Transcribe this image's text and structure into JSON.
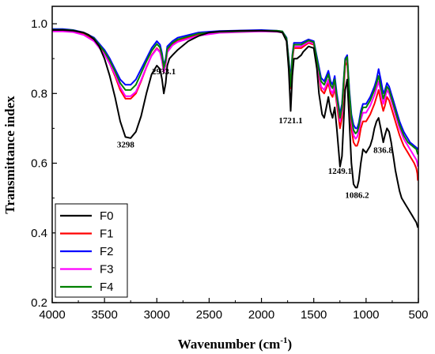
{
  "chart_data": {
    "type": "line",
    "xlabel": "Wavenumber (cm",
    "xlabel_sup": "-1",
    "xlabel_end": ")",
    "ylabel": "Transmittance index",
    "xlim": [
      4000,
      500
    ],
    "ylim": [
      0.2,
      1.05
    ],
    "x_ticks": [
      "4000",
      "3500",
      "3000",
      "2500",
      "2000",
      "1500",
      "1000",
      "500"
    ],
    "y_ticks": [
      "0.2",
      "0.4",
      "0.6",
      "0.8",
      "1.0"
    ],
    "grid": false,
    "legend_position": "bottom-left",
    "annotations": [
      {
        "text": "3298",
        "x": 3298,
        "y": 0.645
      },
      {
        "text": "2933.1",
        "x": 2933,
        "y": 0.855
      },
      {
        "text": "1721.1",
        "x": 1721,
        "y": 0.715
      },
      {
        "text": "1249.1",
        "x": 1249,
        "y": 0.57
      },
      {
        "text": "1086.2",
        "x": 1086,
        "y": 0.5
      },
      {
        "text": "836.8",
        "x": 836,
        "y": 0.63
      }
    ],
    "series": [
      {
        "name": "F0",
        "color": "#000000",
        "x": [
          4000,
          3900,
          3800,
          3700,
          3650,
          3600,
          3550,
          3500,
          3450,
          3400,
          3350,
          3300,
          3250,
          3200,
          3150,
          3100,
          3050,
          3000,
          2970,
          2950,
          2933,
          2915,
          2900,
          2880,
          2850,
          2800,
          2700,
          2600,
          2500,
          2400,
          2200,
          2000,
          1850,
          1800,
          1760,
          1740,
          1721,
          1705,
          1690,
          1660,
          1620,
          1600,
          1550,
          1500,
          1470,
          1450,
          1420,
          1400,
          1380,
          1360,
          1340,
          1320,
          1300,
          1280,
          1249,
          1230,
          1200,
          1180,
          1160,
          1140,
          1120,
          1100,
          1086,
          1070,
          1050,
          1030,
          1000,
          980,
          960,
          940,
          920,
          900,
          880,
          860,
          836,
          820,
          800,
          780,
          760,
          740,
          720,
          700,
          680,
          660,
          640,
          620,
          600,
          580,
          560,
          540,
          520,
          510,
          505
        ],
        "y": [
          0.982,
          0.982,
          0.98,
          0.975,
          0.968,
          0.955,
          0.935,
          0.9,
          0.85,
          0.79,
          0.72,
          0.675,
          0.672,
          0.69,
          0.735,
          0.8,
          0.855,
          0.88,
          0.87,
          0.84,
          0.8,
          0.83,
          0.88,
          0.9,
          0.91,
          0.925,
          0.95,
          0.965,
          0.975,
          0.978,
          0.98,
          0.98,
          0.978,
          0.975,
          0.95,
          0.87,
          0.75,
          0.85,
          0.9,
          0.9,
          0.91,
          0.92,
          0.935,
          0.93,
          0.87,
          0.8,
          0.74,
          0.73,
          0.76,
          0.79,
          0.75,
          0.73,
          0.76,
          0.7,
          0.59,
          0.62,
          0.81,
          0.84,
          0.72,
          0.6,
          0.54,
          0.53,
          0.53,
          0.55,
          0.6,
          0.64,
          0.63,
          0.64,
          0.65,
          0.67,
          0.7,
          0.72,
          0.73,
          0.7,
          0.66,
          0.68,
          0.7,
          0.69,
          0.66,
          0.62,
          0.58,
          0.55,
          0.52,
          0.5,
          0.49,
          0.48,
          0.47,
          0.46,
          0.45,
          0.44,
          0.43,
          0.42,
          0.415
        ]
      },
      {
        "name": "F1",
        "color": "#ff0000",
        "x": [
          4000,
          3900,
          3800,
          3700,
          3600,
          3500,
          3450,
          3400,
          3350,
          3300,
          3250,
          3200,
          3150,
          3100,
          3050,
          3000,
          2970,
          2950,
          2933,
          2915,
          2900,
          2850,
          2800,
          2600,
          2400,
          2000,
          1850,
          1800,
          1760,
          1740,
          1721,
          1705,
          1690,
          1620,
          1550,
          1500,
          1460,
          1430,
          1400,
          1380,
          1360,
          1340,
          1320,
          1300,
          1280,
          1249,
          1230,
          1200,
          1180,
          1160,
          1140,
          1120,
          1100,
          1086,
          1070,
          1050,
          1030,
          1000,
          960,
          920,
          900,
          880,
          860,
          836,
          820,
          800,
          780,
          760,
          740,
          720,
          700,
          680,
          660,
          640,
          620,
          600,
          580,
          560,
          540,
          520,
          510,
          505
        ],
        "y": [
          0.982,
          0.982,
          0.98,
          0.972,
          0.955,
          0.915,
          0.885,
          0.85,
          0.81,
          0.785,
          0.785,
          0.8,
          0.835,
          0.875,
          0.91,
          0.93,
          0.92,
          0.895,
          0.86,
          0.885,
          0.92,
          0.94,
          0.95,
          0.97,
          0.977,
          0.98,
          0.978,
          0.975,
          0.955,
          0.88,
          0.815,
          0.895,
          0.93,
          0.93,
          0.945,
          0.94,
          0.87,
          0.81,
          0.8,
          0.815,
          0.83,
          0.8,
          0.79,
          0.815,
          0.77,
          0.7,
          0.73,
          0.88,
          0.89,
          0.78,
          0.7,
          0.66,
          0.65,
          0.65,
          0.665,
          0.7,
          0.72,
          0.72,
          0.74,
          0.77,
          0.79,
          0.81,
          0.78,
          0.75,
          0.765,
          0.79,
          0.78,
          0.76,
          0.74,
          0.72,
          0.7,
          0.68,
          0.665,
          0.65,
          0.64,
          0.63,
          0.62,
          0.61,
          0.6,
          0.585,
          0.57,
          0.55
        ]
      },
      {
        "name": "F2",
        "color": "#0000ff",
        "x": [
          4000,
          3900,
          3800,
          3700,
          3600,
          3500,
          3450,
          3400,
          3350,
          3300,
          3250,
          3200,
          3150,
          3100,
          3050,
          3000,
          2970,
          2950,
          2933,
          2915,
          2900,
          2850,
          2800,
          2600,
          2400,
          2000,
          1850,
          1800,
          1760,
          1740,
          1721,
          1705,
          1690,
          1620,
          1550,
          1500,
          1460,
          1430,
          1400,
          1380,
          1360,
          1340,
          1320,
          1300,
          1280,
          1249,
          1230,
          1200,
          1180,
          1160,
          1140,
          1120,
          1100,
          1086,
          1070,
          1050,
          1030,
          1000,
          960,
          920,
          900,
          880,
          860,
          836,
          820,
          800,
          780,
          760,
          740,
          720,
          700,
          680,
          660,
          640,
          620,
          600,
          580,
          560,
          540,
          520,
          510,
          505
        ],
        "y": [
          0.985,
          0.985,
          0.982,
          0.975,
          0.96,
          0.925,
          0.9,
          0.87,
          0.84,
          0.825,
          0.825,
          0.84,
          0.87,
          0.9,
          0.93,
          0.95,
          0.94,
          0.915,
          0.88,
          0.9,
          0.935,
          0.95,
          0.96,
          0.975,
          0.979,
          0.982,
          0.98,
          0.978,
          0.96,
          0.9,
          0.84,
          0.91,
          0.945,
          0.945,
          0.955,
          0.95,
          0.89,
          0.845,
          0.835,
          0.85,
          0.865,
          0.835,
          0.825,
          0.85,
          0.8,
          0.74,
          0.77,
          0.9,
          0.91,
          0.81,
          0.74,
          0.71,
          0.7,
          0.7,
          0.715,
          0.75,
          0.77,
          0.77,
          0.79,
          0.82,
          0.84,
          0.87,
          0.84,
          0.8,
          0.81,
          0.83,
          0.82,
          0.8,
          0.78,
          0.76,
          0.74,
          0.72,
          0.705,
          0.69,
          0.68,
          0.67,
          0.66,
          0.655,
          0.65,
          0.645,
          0.64,
          0.645
        ]
      },
      {
        "name": "F3",
        "color": "#ff00ff",
        "x": [
          4000,
          3900,
          3800,
          3700,
          3600,
          3500,
          3450,
          3400,
          3350,
          3300,
          3250,
          3200,
          3150,
          3100,
          3050,
          3000,
          2970,
          2950,
          2933,
          2915,
          2900,
          2850,
          2800,
          2600,
          2400,
          2000,
          1850,
          1800,
          1760,
          1740,
          1721,
          1705,
          1690,
          1620,
          1550,
          1500,
          1460,
          1430,
          1400,
          1380,
          1360,
          1340,
          1320,
          1300,
          1280,
          1249,
          1230,
          1200,
          1180,
          1160,
          1140,
          1120,
          1100,
          1086,
          1070,
          1050,
          1030,
          1000,
          960,
          920,
          900,
          880,
          860,
          836,
          820,
          800,
          780,
          760,
          740,
          720,
          700,
          680,
          660,
          640,
          620,
          600,
          580,
          560,
          540,
          520,
          510,
          505
        ],
        "y": [
          0.978,
          0.978,
          0.976,
          0.968,
          0.95,
          0.912,
          0.885,
          0.855,
          0.818,
          0.792,
          0.792,
          0.805,
          0.838,
          0.876,
          0.908,
          0.928,
          0.918,
          0.893,
          0.86,
          0.885,
          0.918,
          0.938,
          0.948,
          0.966,
          0.974,
          0.978,
          0.977,
          0.975,
          0.955,
          0.888,
          0.83,
          0.9,
          0.935,
          0.935,
          0.948,
          0.943,
          0.875,
          0.82,
          0.81,
          0.825,
          0.84,
          0.81,
          0.8,
          0.825,
          0.78,
          0.72,
          0.75,
          0.89,
          0.9,
          0.795,
          0.72,
          0.68,
          0.67,
          0.675,
          0.69,
          0.725,
          0.745,
          0.745,
          0.765,
          0.795,
          0.815,
          0.835,
          0.805,
          0.77,
          0.785,
          0.81,
          0.8,
          0.78,
          0.76,
          0.74,
          0.72,
          0.7,
          0.685,
          0.67,
          0.66,
          0.65,
          0.64,
          0.63,
          0.62,
          0.61,
          0.6,
          0.59
        ]
      },
      {
        "name": "F4",
        "color": "#008000",
        "x": [
          4000,
          3900,
          3800,
          3700,
          3600,
          3500,
          3450,
          3400,
          3350,
          3300,
          3250,
          3200,
          3150,
          3100,
          3050,
          3000,
          2970,
          2950,
          2933,
          2915,
          2900,
          2850,
          2800,
          2600,
          2400,
          2000,
          1850,
          1800,
          1760,
          1740,
          1721,
          1705,
          1690,
          1620,
          1550,
          1500,
          1460,
          1430,
          1400,
          1380,
          1360,
          1340,
          1320,
          1300,
          1280,
          1249,
          1230,
          1200,
          1180,
          1160,
          1140,
          1120,
          1100,
          1086,
          1070,
          1050,
          1030,
          1000,
          960,
          920,
          900,
          880,
          860,
          836,
          820,
          800,
          780,
          760,
          740,
          720,
          700,
          680,
          660,
          640,
          620,
          600,
          580,
          560,
          540,
          520,
          510,
          505
        ],
        "y": [
          0.983,
          0.983,
          0.981,
          0.974,
          0.958,
          0.92,
          0.894,
          0.864,
          0.83,
          0.81,
          0.81,
          0.825,
          0.858,
          0.892,
          0.922,
          0.942,
          0.932,
          0.908,
          0.873,
          0.895,
          0.928,
          0.945,
          0.955,
          0.972,
          0.977,
          0.98,
          0.98,
          0.978,
          0.958,
          0.895,
          0.82,
          0.905,
          0.94,
          0.94,
          0.952,
          0.947,
          0.882,
          0.835,
          0.825,
          0.84,
          0.855,
          0.825,
          0.815,
          0.84,
          0.79,
          0.73,
          0.76,
          0.895,
          0.905,
          0.8,
          0.73,
          0.695,
          0.685,
          0.69,
          0.705,
          0.74,
          0.76,
          0.76,
          0.78,
          0.81,
          0.83,
          0.85,
          0.82,
          0.785,
          0.8,
          0.82,
          0.81,
          0.79,
          0.77,
          0.75,
          0.73,
          0.71,
          0.695,
          0.68,
          0.67,
          0.66,
          0.655,
          0.65,
          0.645,
          0.64,
          0.63,
          0.625
        ]
      }
    ]
  }
}
